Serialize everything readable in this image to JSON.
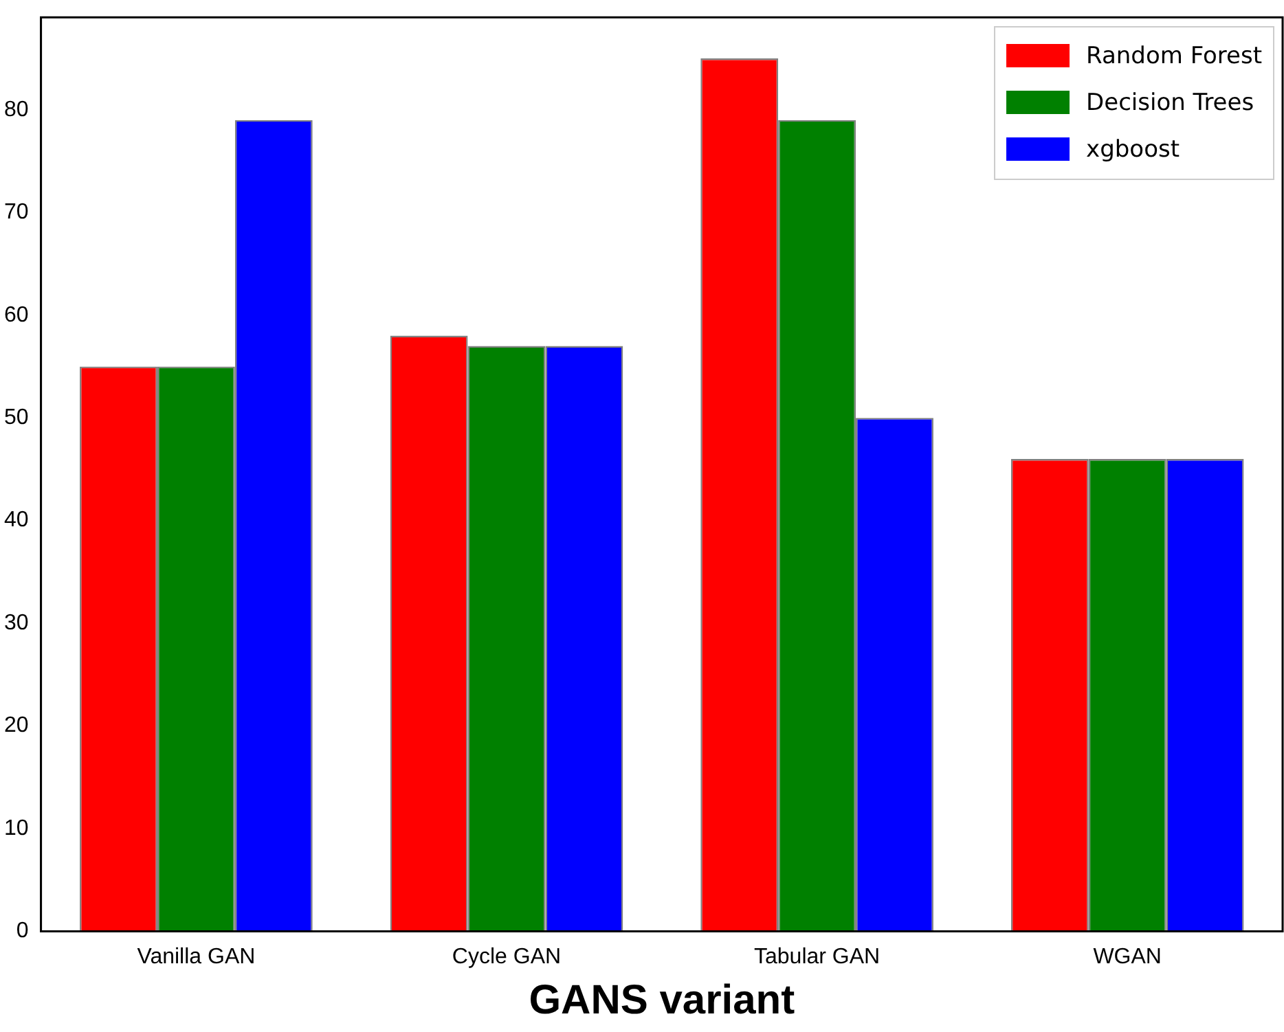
{
  "chart_data": {
    "type": "bar",
    "xlabel": "GANS variant",
    "categories": [
      "Vanilla GAN",
      "Cycle GAN",
      "Tabular GAN",
      "WGAN"
    ],
    "series": [
      {
        "name": "Random Forest",
        "color": "#ff0000",
        "values": [
          55,
          58,
          85,
          46
        ]
      },
      {
        "name": "Decision Trees",
        "color": "#008000",
        "values": [
          55,
          57,
          79,
          46
        ]
      },
      {
        "name": "xgboost",
        "color": "#0000ff",
        "values": [
          79,
          57,
          50,
          46
        ]
      }
    ],
    "ylim": [
      0,
      89
    ],
    "yticks": [
      0,
      10,
      20,
      30,
      40,
      50,
      60,
      70,
      80
    ],
    "grid": false,
    "legend": "top right"
  }
}
